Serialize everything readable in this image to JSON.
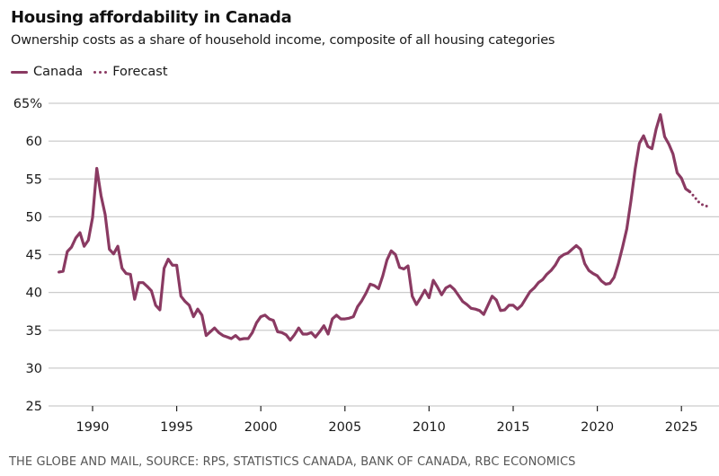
{
  "header": {
    "title": "Housing affordability in Canada",
    "subtitle": "Ownership costs as a share of household income, composite of all housing categories"
  },
  "legend": [
    {
      "label": "Canada",
      "style": "solid"
    },
    {
      "label": "Forecast",
      "style": "dotted"
    }
  ],
  "colors": {
    "line": "#8a3a62",
    "grid": "#cccccc",
    "tick": "#222222"
  },
  "source": "THE GLOBE AND MAIL, SOURCE: RPS, STATISTICS CANADA, BANK OF CANADA, RBC ECONOMICS",
  "chart_data": {
    "type": "line",
    "title": "Housing affordability in Canada",
    "subtitle": "Ownership costs as a share of household income, composite of all housing categories",
    "xlabel": "",
    "ylabel": "",
    "frequency": "quarterly",
    "start": "1988-Q1",
    "xlim": [
      1987.6,
      2027.0
    ],
    "ylim": [
      25,
      65
    ],
    "yticks": [
      25,
      30,
      35,
      40,
      45,
      50,
      55,
      60,
      65
    ],
    "ytick_labels": [
      "25",
      "30",
      "35",
      "40",
      "45",
      "50",
      "55",
      "60",
      "65%"
    ],
    "xticks": [
      1990,
      1995,
      2000,
      2005,
      2010,
      2015,
      2020,
      2025
    ],
    "xtick_labels": [
      "1990",
      "1995",
      "2000",
      "2005",
      "2010",
      "2015",
      "2020",
      "2025"
    ],
    "grid": true,
    "legend_position": "top-left",
    "series": [
      {
        "name": "Canada",
        "style": "solid",
        "start": "1988-Q1",
        "values": [
          42.7,
          42.8,
          45.4,
          46.0,
          47.2,
          47.9,
          46.1,
          46.9,
          49.9,
          56.4,
          52.8,
          50.3,
          45.7,
          45.1,
          46.1,
          43.2,
          42.5,
          42.4,
          39.1,
          41.3,
          41.3,
          40.8,
          40.2,
          38.3,
          37.7,
          43.2,
          44.4,
          43.6,
          43.6,
          39.5,
          38.8,
          38.3,
          36.8,
          37.8,
          37.0,
          34.3,
          34.8,
          35.3,
          34.7,
          34.3,
          34.1,
          33.9,
          34.3,
          33.8,
          33.9,
          33.9,
          34.7,
          36.0,
          36.8,
          37.0,
          36.5,
          36.3,
          34.8,
          34.7,
          34.4,
          33.7,
          34.4,
          35.3,
          34.5,
          34.5,
          34.7,
          34.1,
          34.8,
          35.6,
          34.5,
          36.5,
          37.0,
          36.5,
          36.5,
          36.6,
          36.8,
          38.1,
          38.9,
          39.9,
          41.1,
          40.9,
          40.5,
          42.2,
          44.3,
          45.5,
          45.0,
          43.3,
          43.1,
          43.5,
          39.5,
          38.4,
          39.3,
          40.3,
          39.3,
          41.6,
          40.7,
          39.7,
          40.6,
          40.9,
          40.4,
          39.6,
          38.8,
          38.4,
          37.9,
          37.8,
          37.6,
          37.1,
          38.3,
          39.5,
          39.0,
          37.6,
          37.7,
          38.3,
          38.3,
          37.8,
          38.3,
          39.2,
          40.1,
          40.6,
          41.3,
          41.7,
          42.4,
          42.9,
          43.6,
          44.6,
          45.0,
          45.2,
          45.7,
          46.2,
          45.7,
          43.8,
          42.9,
          42.5,
          42.2,
          41.5,
          41.1,
          41.2,
          42.0,
          43.8,
          46.0,
          48.4,
          52.1,
          56.3,
          59.7,
          60.7,
          59.3,
          59.0,
          61.6,
          63.5,
          60.6,
          59.6,
          58.3,
          55.8,
          55.1,
          53.7,
          53.3
        ]
      },
      {
        "name": "Forecast",
        "style": "dotted",
        "start": "2025-Q3",
        "values": [
          53.3,
          52.7,
          52.0,
          51.6,
          51.4,
          51.4
        ]
      }
    ]
  }
}
